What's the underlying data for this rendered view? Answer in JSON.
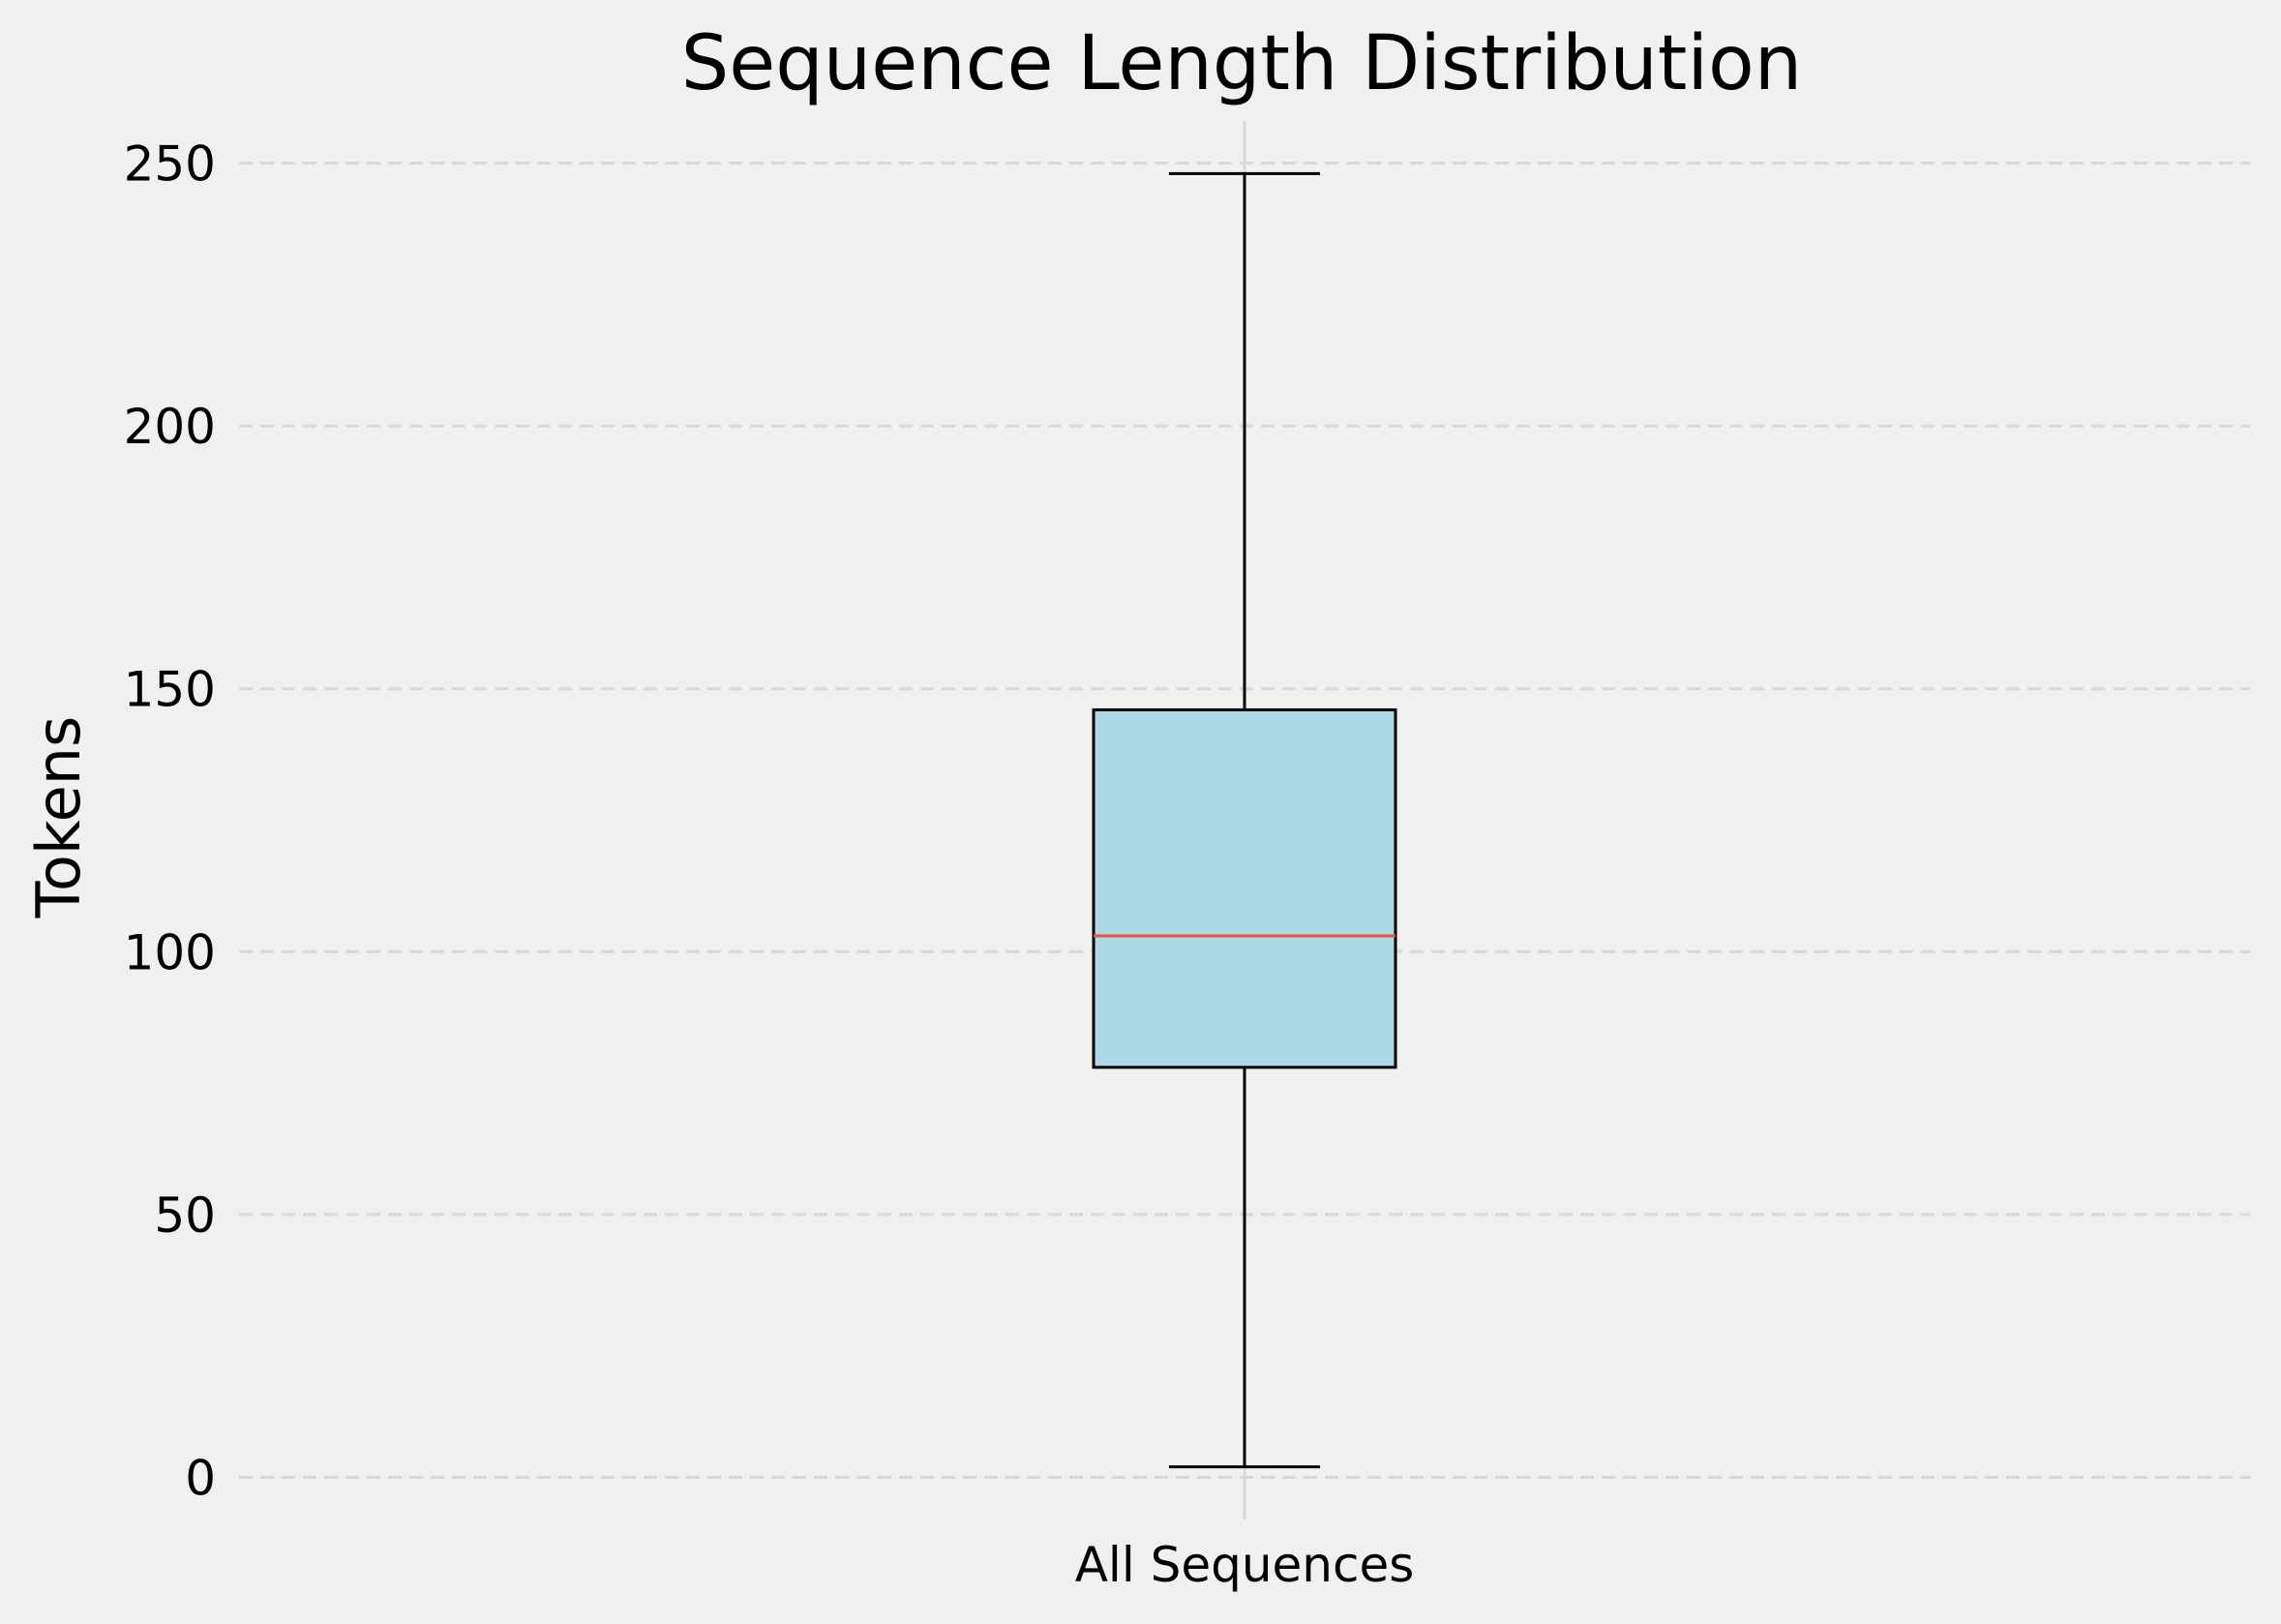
{
  "chart_data": {
    "type": "box",
    "title": "Sequence Length Distribution",
    "xlabel": "",
    "ylabel": "Tokens",
    "categories": [
      "All Sequences"
    ],
    "boxes": [
      {
        "category": "All Sequences",
        "whisker_low": 2,
        "q1": 78,
        "median": 103,
        "q3": 146,
        "whisker_high": 248
      }
    ],
    "ylim": [
      -8,
      258
    ],
    "yticks": [
      0,
      50,
      100,
      150,
      200,
      250
    ],
    "grid": {
      "y": true,
      "x": true,
      "style": "dashed"
    },
    "colors": {
      "background": "#f0f0f0",
      "box_fill": "#add8e6",
      "box_edge": "#000000",
      "median": "#e8503a",
      "grid": "#d8d8d8"
    }
  }
}
